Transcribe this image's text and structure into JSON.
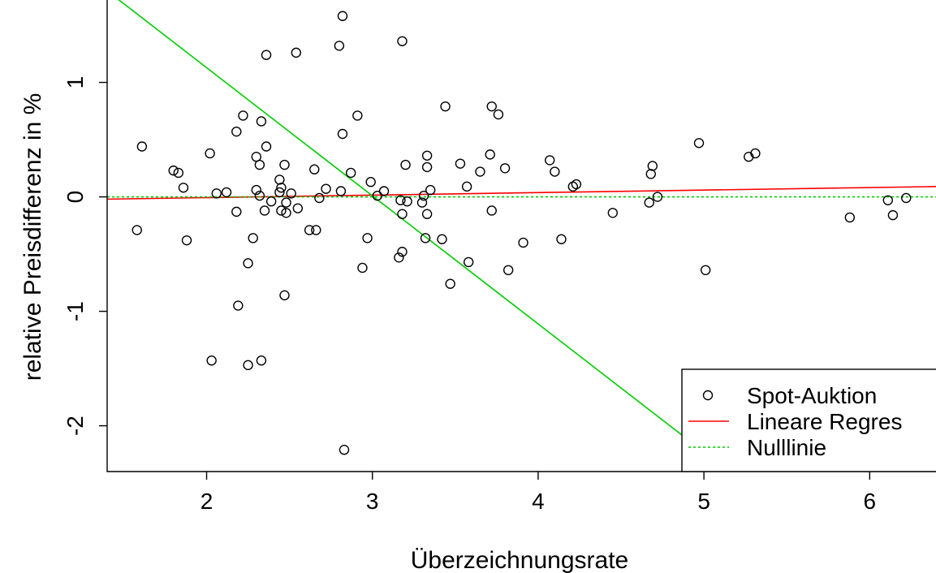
{
  "chart_data": {
    "type": "scatter",
    "xlabel": "Überzeichnungsrate",
    "ylabel": "relative Preisdifferenz in %",
    "xlim": [
      1.4,
      6.4
    ],
    "ylim": [
      -2.4,
      1.72
    ],
    "xticks": [
      "2",
      "3",
      "4",
      "5",
      "6"
    ],
    "yticks": [
      "-2",
      "-1",
      "0",
      "1"
    ],
    "grid": false,
    "legend_position": "bottom-right",
    "legend": [
      {
        "label": "Spot-Auktion",
        "style": "open-circle",
        "color": "#000000"
      },
      {
        "label": "Lineare Regres",
        "style": "solid-line",
        "color": "#ff0000"
      },
      {
        "label": "Nulllinie",
        "style": "dotted-line",
        "color": "#00cc00"
      }
    ],
    "series": [
      {
        "name": "Spot-Auktion",
        "points": [
          [
            1.58,
            -0.29
          ],
          [
            1.61,
            0.44
          ],
          [
            1.8,
            0.23
          ],
          [
            1.83,
            0.21
          ],
          [
            1.86,
            0.08
          ],
          [
            1.88,
            -0.38
          ],
          [
            2.02,
            0.38
          ],
          [
            2.03,
            -1.43
          ],
          [
            2.06,
            0.03
          ],
          [
            2.12,
            0.04
          ],
          [
            2.18,
            0.57
          ],
          [
            2.18,
            -0.13
          ],
          [
            2.19,
            -0.95
          ],
          [
            2.22,
            0.71
          ],
          [
            2.25,
            -0.58
          ],
          [
            2.25,
            -1.47
          ],
          [
            2.28,
            -0.36
          ],
          [
            2.3,
            0.35
          ],
          [
            2.3,
            0.06
          ],
          [
            2.32,
            0.28
          ],
          [
            2.32,
            0.01
          ],
          [
            2.33,
            0.66
          ],
          [
            2.33,
            -1.43
          ],
          [
            2.35,
            -0.12
          ],
          [
            2.36,
            0.44
          ],
          [
            2.36,
            1.24
          ],
          [
            2.39,
            -0.04
          ],
          [
            2.44,
            0.15
          ],
          [
            2.44,
            0.04
          ],
          [
            2.45,
            0.08
          ],
          [
            2.45,
            -0.12
          ],
          [
            2.47,
            0.28
          ],
          [
            2.47,
            -0.86
          ],
          [
            2.48,
            -0.05
          ],
          [
            2.48,
            -0.14
          ],
          [
            2.51,
            0.03
          ],
          [
            2.54,
            1.26
          ],
          [
            2.55,
            -0.1
          ],
          [
            2.62,
            -0.29
          ],
          [
            2.65,
            0.24
          ],
          [
            2.66,
            -0.29
          ],
          [
            2.68,
            -0.01
          ],
          [
            2.72,
            0.07
          ],
          [
            2.8,
            1.32
          ],
          [
            2.81,
            0.05
          ],
          [
            2.82,
            1.58
          ],
          [
            2.82,
            0.55
          ],
          [
            2.83,
            -2.21
          ],
          [
            2.87,
            0.21
          ],
          [
            2.91,
            0.71
          ],
          [
            2.94,
            -0.62
          ],
          [
            2.97,
            -0.36
          ],
          [
            2.99,
            0.13
          ],
          [
            3.03,
            0.01
          ],
          [
            3.07,
            0.05
          ],
          [
            3.16,
            -0.53
          ],
          [
            3.17,
            -0.03
          ],
          [
            3.18,
            1.36
          ],
          [
            3.18,
            -0.15
          ],
          [
            3.18,
            -0.48
          ],
          [
            3.2,
            0.28
          ],
          [
            3.21,
            -0.04
          ],
          [
            3.3,
            -0.05
          ],
          [
            3.31,
            0.01
          ],
          [
            3.32,
            -0.36
          ],
          [
            3.33,
            -0.15
          ],
          [
            3.33,
            0.36
          ],
          [
            3.33,
            0.26
          ],
          [
            3.35,
            0.06
          ],
          [
            3.42,
            -0.37
          ],
          [
            3.44,
            0.79
          ],
          [
            3.47,
            -0.76
          ],
          [
            3.53,
            0.29
          ],
          [
            3.57,
            0.09
          ],
          [
            3.58,
            -0.57
          ],
          [
            3.65,
            0.22
          ],
          [
            3.71,
            0.37
          ],
          [
            3.72,
            0.79
          ],
          [
            3.72,
            -0.12
          ],
          [
            3.76,
            0.72
          ],
          [
            3.8,
            0.25
          ],
          [
            3.82,
            -0.64
          ],
          [
            3.91,
            -0.4
          ],
          [
            4.07,
            0.32
          ],
          [
            4.1,
            0.22
          ],
          [
            4.14,
            -0.37
          ],
          [
            4.21,
            0.09
          ],
          [
            4.23,
            0.11
          ],
          [
            4.45,
            -0.14
          ],
          [
            4.67,
            -0.05
          ],
          [
            4.68,
            0.2
          ],
          [
            4.69,
            0.27
          ],
          [
            4.72,
            0.0
          ],
          [
            4.97,
            0.47
          ],
          [
            5.01,
            -0.64
          ],
          [
            5.27,
            0.35
          ],
          [
            5.31,
            0.38
          ],
          [
            5.88,
            -0.18
          ],
          [
            6.11,
            -0.03
          ],
          [
            6.14,
            -0.16
          ],
          [
            6.22,
            -0.01
          ]
        ]
      },
      {
        "name": "Lineare Regres",
        "line": [
          [
            1.4,
            -0.02
          ],
          [
            6.4,
            0.09
          ]
        ]
      },
      {
        "name": "Nulllinie",
        "line": [
          [
            1.4,
            0.0
          ],
          [
            6.4,
            0.0
          ]
        ]
      },
      {
        "line": [
          [
            1.4,
            1.8
          ],
          [
            4.92,
            -2.14
          ]
        ],
        "color": "#00cc00"
      }
    ]
  }
}
